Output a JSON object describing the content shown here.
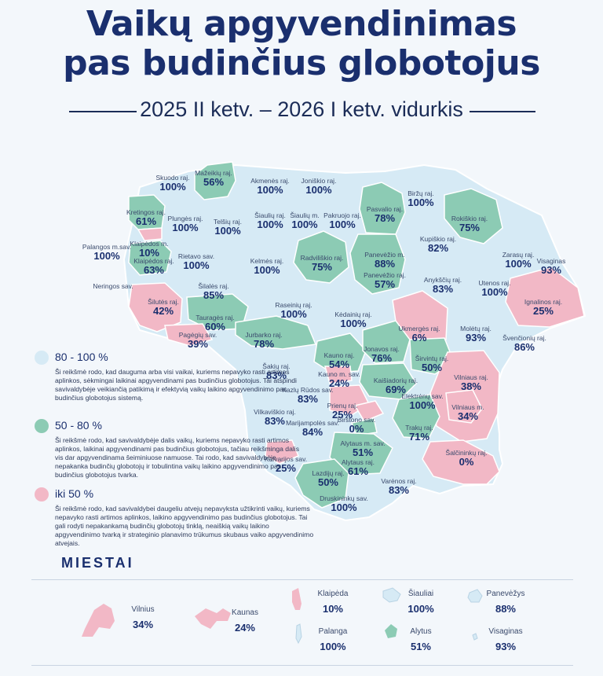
{
  "title_line1": "Vaikų apgyvendinimas",
  "title_line2": "pas budinčius globotojus",
  "subtitle": "2025 II ketv. – 2026 I ketv. vidurkis",
  "colors": {
    "high": "#d6eaf5",
    "mid": "#8ccbb4",
    "low": "#f2b8c6",
    "title": "#1a2f6e"
  },
  "municipalities": [
    {
      "name": "Skuodo raj.",
      "value": "100%",
      "category": "high"
    },
    {
      "name": "Mažeikių raj.",
      "value": "56%",
      "category": "mid"
    },
    {
      "name": "Akmenės raj.",
      "value": "100%",
      "category": "high"
    },
    {
      "name": "Joniškio raj.",
      "value": "100%",
      "category": "high"
    },
    {
      "name": "Biržų raj.",
      "value": "100%",
      "category": "high"
    },
    {
      "name": "Kretingos raj.",
      "value": "61%",
      "category": "mid"
    },
    {
      "name": "Plungės raj.",
      "value": "100%",
      "category": "high"
    },
    {
      "name": "Telšių raj.",
      "value": "100%",
      "category": "high"
    },
    {
      "name": "Šiaulių raj.",
      "value": "100%",
      "category": "high"
    },
    {
      "name": "Šiaulių m.",
      "value": "100%",
      "category": "high"
    },
    {
      "name": "Pakruojo raj.",
      "value": "100%",
      "category": "high"
    },
    {
      "name": "Pasvalio raj.",
      "value": "78%",
      "category": "mid"
    },
    {
      "name": "Rokiškio raj.",
      "value": "75%",
      "category": "mid"
    },
    {
      "name": "Palangos m.sav.",
      "value": "100%",
      "category": "high"
    },
    {
      "name": "Klaipėdos m.",
      "value": "10%",
      "category": "low"
    },
    {
      "name": "Klaipėdos raj.",
      "value": "63%",
      "category": "mid"
    },
    {
      "name": "Rietavo sav.",
      "value": "100%",
      "category": "high"
    },
    {
      "name": "Kelmės raj.",
      "value": "100%",
      "category": "high"
    },
    {
      "name": "Radviliškio raj.",
      "value": "75%",
      "category": "mid"
    },
    {
      "name": "Panevėžio m.",
      "value": "88%",
      "category": "high"
    },
    {
      "name": "Panevėžio raj.",
      "value": "57%",
      "category": "mid"
    },
    {
      "name": "Kupiškio raj.",
      "value": "82%",
      "category": "high"
    },
    {
      "name": "Zarasų raj.",
      "value": "100%",
      "category": "high"
    },
    {
      "name": "Visaginas",
      "value": "93%",
      "category": "high"
    },
    {
      "name": "Neringos sav.",
      "value": "",
      "category": "high"
    },
    {
      "name": "Šilalės raj.",
      "value": "85%",
      "category": "high"
    },
    {
      "name": "Anykščių raj.",
      "value": "83%",
      "category": "high"
    },
    {
      "name": "Utenos raj.",
      "value": "100%",
      "category": "high"
    },
    {
      "name": "Šilutės raj.",
      "value": "42%",
      "category": "low"
    },
    {
      "name": "Raseinių raj.",
      "value": "100%",
      "category": "high"
    },
    {
      "name": "Tauragės raj.",
      "value": "60%",
      "category": "mid"
    },
    {
      "name": "Kėdainių raj.",
      "value": "100%",
      "category": "high"
    },
    {
      "name": "Ignalinos raj.",
      "value": "25%",
      "category": "low"
    },
    {
      "name": "Pagėgių sav.",
      "value": "39%",
      "category": "low"
    },
    {
      "name": "Jurbarko raj.",
      "value": "78%",
      "category": "mid"
    },
    {
      "name": "Ukmergės raj.",
      "value": "6%",
      "category": "low"
    },
    {
      "name": "Molėtų raj.",
      "value": "93%",
      "category": "high"
    },
    {
      "name": "Švenčionių raj.",
      "value": "86%",
      "category": "high"
    },
    {
      "name": "Kauno raj.",
      "value": "54%",
      "category": "mid"
    },
    {
      "name": "Jonavos raj.",
      "value": "76%",
      "category": "mid"
    },
    {
      "name": "Kauno m. sav.",
      "value": "24%",
      "category": "low"
    },
    {
      "name": "Širvintų raj.",
      "value": "50%",
      "category": "mid"
    },
    {
      "name": "Šakių raj.",
      "value": "83%",
      "category": "high"
    },
    {
      "name": "Kaišiadorių raj.",
      "value": "69%",
      "category": "mid"
    },
    {
      "name": "Vilniaus raj.",
      "value": "38%",
      "category": "low"
    },
    {
      "name": "Kazlų Rūdos sav.",
      "value": "83%",
      "category": "high"
    },
    {
      "name": "Elektrėnų sav.",
      "value": "100%",
      "category": "high"
    },
    {
      "name": "Prienų raj.",
      "value": "25%",
      "category": "low"
    },
    {
      "name": "Vilniaus m.",
      "value": "34%",
      "category": "low"
    },
    {
      "name": "Vilkaviškio raj.",
      "value": "83%",
      "category": "high"
    },
    {
      "name": "Marijampolės sav.",
      "value": "84%",
      "category": "high"
    },
    {
      "name": "Birštono sav.",
      "value": "0%",
      "category": "low"
    },
    {
      "name": "Trakų raj.",
      "value": "71%",
      "category": "mid"
    },
    {
      "name": "Alytaus m. sav.",
      "value": "51%",
      "category": "mid"
    },
    {
      "name": "Kalvarijos sav.",
      "value": "25%",
      "category": "low"
    },
    {
      "name": "Alytaus raj.",
      "value": "61%",
      "category": "mid"
    },
    {
      "name": "Šalčininkų raj.",
      "value": "0%",
      "category": "low"
    },
    {
      "name": "Lazdijų raj.",
      "value": "50%",
      "category": "mid"
    },
    {
      "name": "Varėnos raj.",
      "value": "83%",
      "category": "high"
    },
    {
      "name": "Druskininkų sav.",
      "value": "100%",
      "category": "high"
    }
  ],
  "legend": [
    {
      "range": "80 - 100 %",
      "color": "#d6eaf5",
      "description": "Ši reikšmė rodo, kad dauguma arba visi vaikai, kuriems nepavyko rasti artimos aplinkos, sėkmingai laikinai apgyvendinami pas budinčius globotojus. Tai atspindi savivaldybėje veikiančią patikimą ir efektyvią vaikų laikino apgyvendinimo pas budinčius globotojus sistemą."
    },
    {
      "range": "50 - 80 %",
      "color": "#8ccbb4",
      "description": "Ši reikšmė rodo, kad savivaldybėje dalis vaikų, kuriems nepavyko rasti artimos aplinkos, laikinai apgyvendinami pas budinčius globotojus, tačiau reikšminga dalis vis dar apgyvendinama šeiminiuose namuose. Tai rodo, kad savivaldybėje nepakanka budinčių globotojų ir tobulintina vaikų laikino apgyvendinimo pas budinčius globotojus tvarka."
    },
    {
      "range": "iki 50 %",
      "color": "#f2b8c6",
      "description": "Ši reikšmė rodo, kad savivaldybei daugeliu atvejų nepavyksta užtikrinti vaikų, kuriems nepavyko rasti artimos aplinkos, laikino apgyvendinimo pas budinčius globotojus. Tai gali rodyti nepakankamą budinčių globotojų tinklą, neaiškią vaikų laikino apgyvendinimo tvarką ir strateginio planavimo trūkumus skubaus vaiko apgyvendinimo atvejais."
    }
  ],
  "cities_title": "MIESTAI",
  "cities": [
    {
      "name": "Vilnius",
      "value": "34%",
      "category": "low"
    },
    {
      "name": "Kaunas",
      "value": "24%",
      "category": "low"
    },
    {
      "name": "Klaipėda",
      "value": "10%",
      "category": "low"
    },
    {
      "name": "Šiauliai",
      "value": "100%",
      "category": "high"
    },
    {
      "name": "Panevėžys",
      "value": "88%",
      "category": "high"
    },
    {
      "name": "Palanga",
      "value": "100%",
      "category": "high"
    },
    {
      "name": "Alytus",
      "value": "51%",
      "category": "mid"
    },
    {
      "name": "Visaginas",
      "value": "93%",
      "category": "high"
    }
  ]
}
